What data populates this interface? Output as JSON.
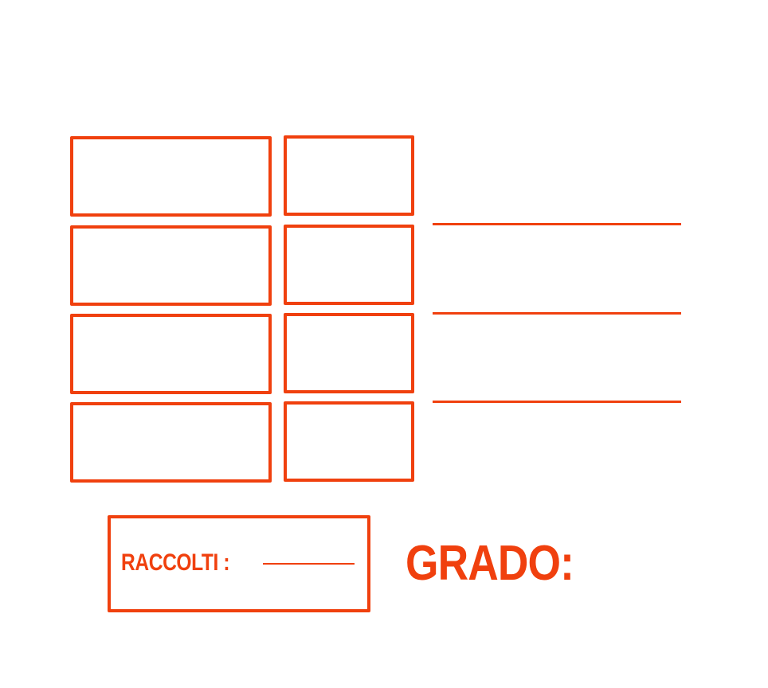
{
  "form": {
    "raccolti_label": "RACCOLTI :",
    "grado_label": "GRADO:"
  },
  "colors": {
    "accent": "#f0400e",
    "background": "#ffffff"
  }
}
